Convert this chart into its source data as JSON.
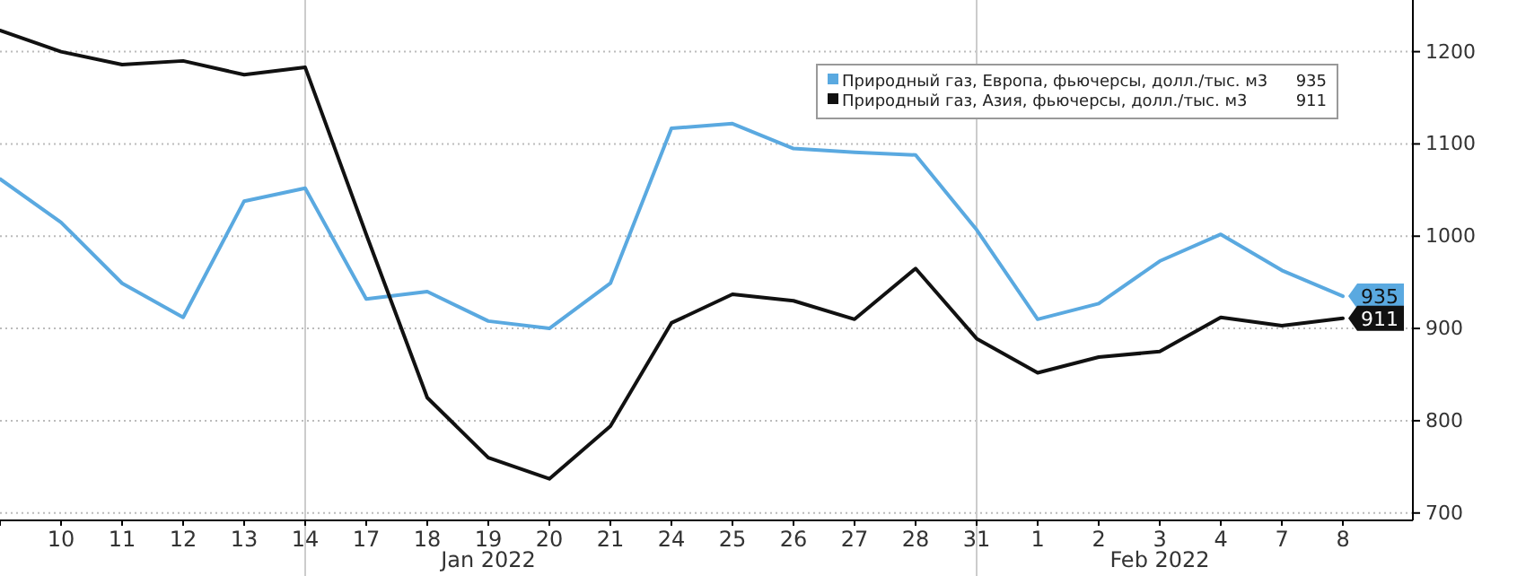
{
  "chart_data": {
    "type": "line",
    "categories": [
      null,
      "10",
      "11",
      "12",
      "13",
      "14",
      "17",
      "18",
      "19",
      "20",
      "21",
      "24",
      "25",
      "26",
      "27",
      "28",
      "31",
      "1",
      "2",
      "3",
      "4",
      "7",
      "8"
    ],
    "series": [
      {
        "name": "Природный газ, Европа, фьючерсы, долл./тыс. м3",
        "color": "#5aa9e0",
        "values": [
          1062,
          1015,
          949,
          912,
          1038,
          1052,
          932,
          940,
          908,
          900,
          949,
          1117,
          1122,
          1095,
          1091,
          1088,
          1007,
          910,
          927,
          973,
          1002,
          963,
          935
        ],
        "value_labels": [
          null,
          null,
          null,
          null,
          null,
          null,
          null,
          null,
          null,
          null,
          null,
          null,
          null,
          null,
          null,
          null,
          null,
          null,
          null,
          null,
          null,
          null,
          "935"
        ]
      },
      {
        "name": "Природный газ, Азия, фьючерсы, долл./тыс. м3",
        "color": "#111111",
        "values": [
          1223,
          1200,
          1186,
          1190,
          1175,
          1183,
          1002,
          825,
          760,
          737,
          794,
          906,
          937,
          930,
          910,
          965,
          889,
          852,
          869,
          875,
          912,
          903,
          911
        ],
        "value_labels": [
          null,
          null,
          null,
          null,
          null,
          null,
          null,
          null,
          null,
          null,
          null,
          null,
          null,
          null,
          null,
          null,
          null,
          null,
          null,
          null,
          null,
          null,
          "911"
        ]
      }
    ],
    "ylim": [
      692,
      1256
    ],
    "yticks": [
      700,
      800,
      900,
      1000,
      1100,
      1200
    ],
    "grid": "y",
    "legend": "top right",
    "ref_lines": [
      {
        "axis": "x",
        "value": "14"
      },
      {
        "axis": "x",
        "value": "31"
      }
    ],
    "annotations": [
      "Jan 2022",
      "Feb 2022"
    ]
  }
}
